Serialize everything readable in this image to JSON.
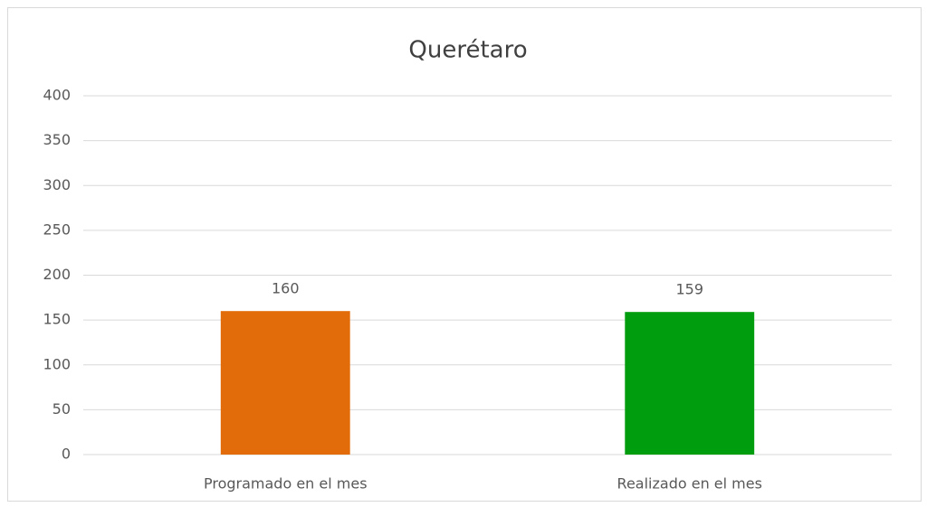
{
  "chart_data": {
    "type": "bar",
    "title": "Querétaro",
    "categories": [
      "Programado en el mes",
      "Realizado en el mes"
    ],
    "values": [
      160,
      159
    ],
    "colors": [
      "#e36c0a",
      "#009e0f"
    ],
    "ylim": [
      0,
      400
    ],
    "yticks": [
      0,
      50,
      100,
      150,
      200,
      250,
      300,
      350,
      400
    ],
    "grid": true
  }
}
